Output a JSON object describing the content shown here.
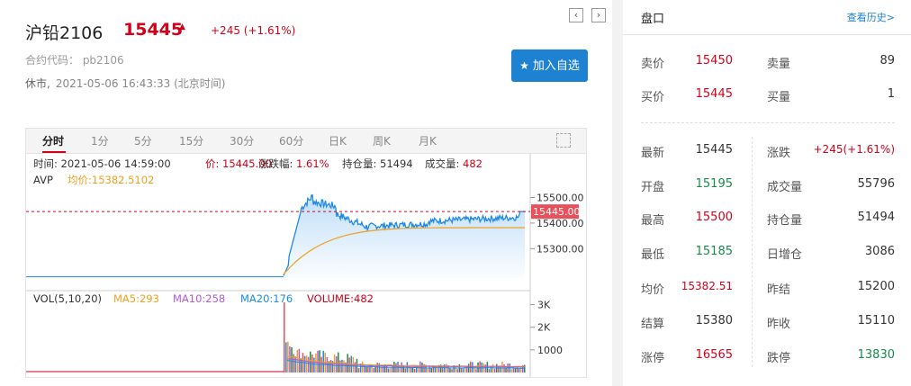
{
  "header": {
    "title": "沪铅2106",
    "price": "15445",
    "change": "+245 (+1.61%)",
    "code": "合约代码： pb2106",
    "status": "休市,",
    "time": "2021-05-06 16:43:33 (北京时间)",
    "add_label": "加入自选",
    "prev_icon": "‹",
    "next_icon": "›"
  },
  "tabs": [
    "分时",
    "1分",
    "5分",
    "15分",
    "30分",
    "60分",
    "日K",
    "周K",
    "月K"
  ],
  "info": {
    "time": "时间: 2021-05-06 14:59:00",
    "price": "价: 15445.00",
    "pct": "涨跌幅: 1.61%",
    "oi": "持仓量: 51494",
    "vol": "成交量: 482",
    "avp": "AVP",
    "avg": "均价:15382.5102",
    "vol_title": "VOL(5,10,20)",
    "ma5": "MA5:293",
    "ma10": "MA10:258",
    "ma20": "MA20:176",
    "volume": "VOLUME:482"
  },
  "colors": {
    "up": "#d0021b",
    "down": "#1a8a4a",
    "price_line": "#1e8ae6",
    "avg_line": "#f0a020",
    "ma10": "#b05ad0"
  },
  "chart_data": {
    "type": "line",
    "price_axis": [
      "15500.00",
      "15400.00",
      "15300.00"
    ],
    "price_ylim": [
      15185,
      15530
    ],
    "last_price_tag": "15445.00",
    "last_price": 15445,
    "vol_axis": [
      "3K",
      "2K",
      "1000"
    ],
    "vol_ylim": [
      0,
      3300
    ]
  },
  "pankou": {
    "title": "盘口",
    "history_link": "查看历史>",
    "rows": [
      {
        "l1": "卖价",
        "v1": "15450",
        "c1": "red",
        "l2": "卖量",
        "v2": "89",
        "c2": ""
      },
      {
        "l1": "买价",
        "v1": "15445",
        "c1": "red",
        "l2": "买量",
        "v2": "1",
        "c2": ""
      },
      {
        "l1": "最新",
        "v1": "15445",
        "c1": "",
        "l2": "涨跌",
        "v2": "+245(+1.61%)",
        "c2": "red"
      },
      {
        "l1": "开盘",
        "v1": "15195",
        "c1": "green",
        "l2": "成交量",
        "v2": "55796",
        "c2": ""
      },
      {
        "l1": "最高",
        "v1": "15500",
        "c1": "red",
        "l2": "持仓量",
        "v2": "51494",
        "c2": ""
      },
      {
        "l1": "最低",
        "v1": "15185",
        "c1": "green",
        "l2": "日增仓",
        "v2": "3086",
        "c2": ""
      },
      {
        "l1": "均价",
        "v1": "15382.51",
        "c1": "red",
        "l2": "昨结",
        "v2": "15200",
        "c2": ""
      },
      {
        "l1": "结算",
        "v1": "15380",
        "c1": "",
        "l2": "昨收",
        "v2": "15110",
        "c2": ""
      },
      {
        "l1": "涨停",
        "v1": "16565",
        "c1": "red",
        "l2": "跌停",
        "v2": "13830",
        "c2": "green"
      }
    ]
  }
}
